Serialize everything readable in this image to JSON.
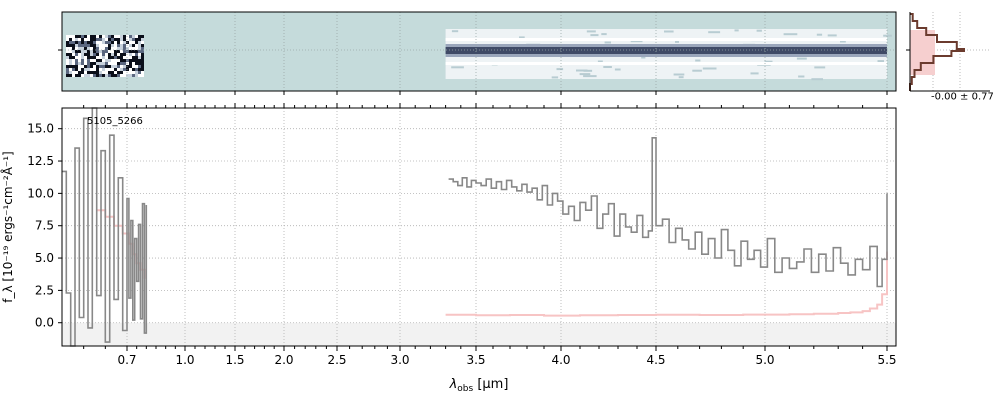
{
  "chart_data": [
    {
      "type": "heatmap",
      "panel": "2d-spectrum",
      "background_color": "#c5dbdb",
      "trace_color": "#3f4a66",
      "segments": [
        {
          "x": [
            0.55,
            0.79
          ],
          "rows": "noisy"
        },
        {
          "x": [
            3.3,
            5.5
          ],
          "rows": "trace"
        }
      ],
      "grid": true
    },
    {
      "type": "line",
      "panel": "histogram",
      "annotation": "-0.00 ± 0.77",
      "fill_color": "#f6cfcf",
      "line_color": "#6b3b2e",
      "grid": true
    },
    {
      "type": "line",
      "panel": "1d-spectrum",
      "label": "5105_5266",
      "xlabel_main": "λ",
      "xlabel_sub": "obs",
      "xlabel_unit": " [μm]",
      "ylabel": "f_λ [10⁻¹⁹ ergs⁻¹cm⁻²Å⁻¹]",
      "ylim": [
        -1.8,
        16.6
      ],
      "yticks": [
        0.0,
        2.5,
        5.0,
        7.5,
        10.0,
        12.5,
        15.0
      ],
      "ytick_labels": [
        "0.0",
        "2.5",
        "5.0",
        "7.5",
        "10.0",
        "12.5",
        "15.0"
      ],
      "xticks": [
        0.7,
        1.0,
        1.5,
        2.0,
        2.5,
        3.0,
        3.5,
        4.0,
        4.5,
        5.0,
        5.5
      ],
      "xtick_labels": [
        "0.7",
        "1.0",
        "1.5",
        "2.0",
        "2.5",
        "3.0",
        "3.5",
        "4.0",
        "4.5",
        "5.0",
        "5.5"
      ],
      "grid": true,
      "series": [
        {
          "color": "#888888",
          "x": [
            0.55,
            0.56,
            0.57,
            0.58,
            0.59,
            0.6,
            0.61,
            0.62,
            0.63,
            0.64,
            0.65,
            0.66,
            0.67,
            0.68,
            0.69,
            0.7,
            0.71,
            0.72,
            0.73,
            0.74,
            0.75,
            0.76,
            0.77,
            0.78,
            0.79,
            0.8
          ],
          "y": [
            11.7,
            2.3,
            -1.8,
            13.5,
            0.4,
            15.8,
            -0.4,
            16.6,
            2.1,
            13.3,
            -1.5,
            14.5,
            1.8,
            11.2,
            -0.6,
            9.6,
            1.9,
            7.9,
            0.2,
            6.5,
            3.2,
            7.6,
            0.3,
            9.2,
            -0.8,
            9.1
          ]
        },
        {
          "color": "#888888",
          "x": [
            3.32,
            3.35,
            3.38,
            3.41,
            3.44,
            3.47,
            3.5,
            3.53,
            3.56,
            3.59,
            3.62,
            3.65,
            3.68,
            3.71,
            3.74,
            3.77,
            3.8,
            3.83,
            3.86,
            3.89,
            3.92,
            3.95,
            3.98,
            4.01,
            4.04,
            4.07,
            4.1,
            4.13,
            4.16,
            4.19,
            4.22,
            4.25,
            4.28,
            4.31,
            4.34,
            4.37,
            4.4,
            4.43,
            4.46,
            4.48,
            4.5,
            4.53,
            4.56,
            4.59,
            4.62,
            4.65,
            4.68,
            4.71,
            4.74,
            4.77,
            4.8,
            4.83,
            4.86,
            4.89,
            4.92,
            4.95,
            4.98,
            5.01,
            5.04,
            5.07,
            5.1,
            5.13,
            5.16,
            5.19,
            5.22,
            5.25,
            5.28,
            5.31,
            5.34,
            5.37,
            5.4,
            5.43,
            5.46,
            5.48,
            5.5
          ],
          "y": [
            11.1,
            10.9,
            10.6,
            11.2,
            10.5,
            11.0,
            10.8,
            10.6,
            11.1,
            10.4,
            10.9,
            10.3,
            11.0,
            10.5,
            10.2,
            10.7,
            10.1,
            10.4,
            9.5,
            10.6,
            9.1,
            10.0,
            9.4,
            8.4,
            9.0,
            7.9,
            9.3,
            8.7,
            9.8,
            7.3,
            8.4,
            9.2,
            6.7,
            8.4,
            7.4,
            7.0,
            8.3,
            6.6,
            7.1,
            14.3,
            7.5,
            8.0,
            6.2,
            7.3,
            6.4,
            5.7,
            7.0,
            5.3,
            6.5,
            5.0,
            7.2,
            5.6,
            4.4,
            6.3,
            4.9,
            5.6,
            4.3,
            6.5,
            3.9,
            5.0,
            4.2,
            4.7,
            5.7,
            3.9,
            5.3,
            4.0,
            5.8,
            4.6,
            3.7,
            4.9,
            4.1,
            5.9,
            2.8,
            4.9,
            10.0
          ]
        },
        {
          "color": "#f7c4c4",
          "x": [
            0.63,
            0.65,
            0.67,
            0.69,
            0.71,
            0.73,
            0.75,
            0.77,
            0.79
          ],
          "y": [
            8.7,
            8.2,
            7.5,
            6.9,
            6.1,
            5.3,
            4.6,
            4.1,
            3.4
          ]
        },
        {
          "color": "#f7c4c4",
          "x": [
            3.3,
            3.5,
            3.7,
            3.9,
            4.1,
            4.3,
            4.5,
            4.7,
            4.9,
            5.1,
            5.2,
            5.3,
            5.35,
            5.4,
            5.43,
            5.46,
            5.48,
            5.5
          ],
          "y": [
            0.62,
            0.58,
            0.6,
            0.55,
            0.58,
            0.6,
            0.62,
            0.6,
            0.63,
            0.65,
            0.7,
            0.75,
            0.8,
            0.9,
            1.1,
            1.4,
            2.2,
            5.5
          ]
        }
      ]
    }
  ]
}
